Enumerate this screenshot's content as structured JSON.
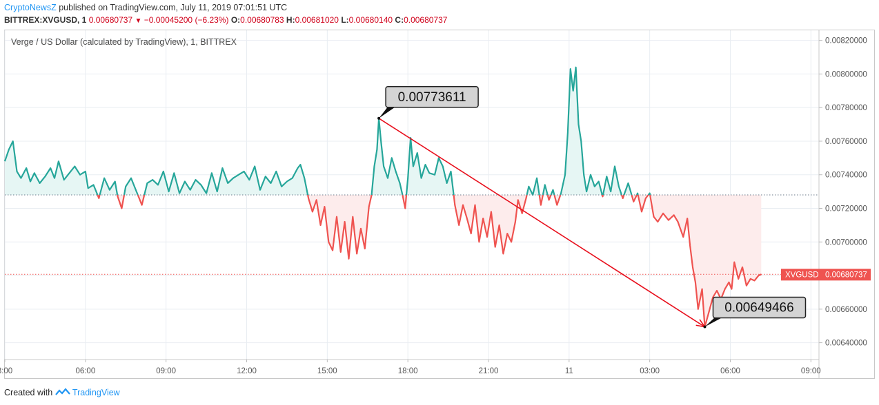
{
  "header": {
    "author": "CryptoNewsZ",
    "published": "published on TradingView.com, July 11, 2019 07:01:51 UTC",
    "symbol": "BITTREX:XVGUSD, 1",
    "last": "0.00680737",
    "change_arrow": "▼",
    "change": "−0.00045200 (−6.23%)",
    "o_label": "O:",
    "o": "0.00680783",
    "h_label": "H:",
    "h": "0.00681020",
    "l_label": "L:",
    "l": "0.00680140",
    "c_label": "C:",
    "c": "0.00680737"
  },
  "footer": {
    "created_with": "Created with",
    "brand": "TradingView"
  },
  "colors": {
    "up": "#26a69a",
    "down": "#ef5350",
    "up_fill": "#e6f6f4",
    "down_fill": "#fdecec",
    "arrow": "#e8101d",
    "grid": "#e9edf2",
    "price_tag": "#ef5350"
  },
  "chart_data": {
    "type": "line",
    "title": "Verge / US Dollar (calculated by TradingView), 1, BITTREX",
    "x_unit": "hours since July 10 03:00 UTC",
    "xlim": [
      0,
      30.3
    ],
    "ylim": [
      0.0063,
      0.00826
    ],
    "baseline": 0.00728,
    "current_price": 0.00680737,
    "current_label": "XVGUSD",
    "current_value_text": "0.00680737",
    "x_ticks": [
      {
        "x": 0,
        "label": "3:00"
      },
      {
        "x": 3,
        "label": "06:00"
      },
      {
        "x": 6,
        "label": "09:00"
      },
      {
        "x": 9,
        "label": "12:00"
      },
      {
        "x": 12,
        "label": "15:00"
      },
      {
        "x": 15,
        "label": "18:00"
      },
      {
        "x": 18,
        "label": "21:00"
      },
      {
        "x": 21,
        "label": "11"
      },
      {
        "x": 24,
        "label": "03:00"
      },
      {
        "x": 27,
        "label": "06:00"
      },
      {
        "x": 30,
        "label": "09:00"
      }
    ],
    "y_ticks": [
      "0.00640000",
      "0.00660000",
      "0.00680000",
      "0.00700000",
      "0.00720000",
      "0.00740000",
      "0.00760000",
      "0.00780000",
      "0.00800000",
      "0.00820000"
    ],
    "series": [
      {
        "name": "XVGUSD",
        "points": [
          [
            0.0,
            0.00748
          ],
          [
            0.15,
            0.00755
          ],
          [
            0.3,
            0.0076
          ],
          [
            0.45,
            0.00742
          ],
          [
            0.6,
            0.00738
          ],
          [
            0.8,
            0.00744
          ],
          [
            0.95,
            0.00736
          ],
          [
            1.1,
            0.00741
          ],
          [
            1.3,
            0.00735
          ],
          [
            1.5,
            0.00739
          ],
          [
            1.7,
            0.00744
          ],
          [
            1.85,
            0.00738
          ],
          [
            2.0,
            0.00748
          ],
          [
            2.2,
            0.00737
          ],
          [
            2.4,
            0.00741
          ],
          [
            2.6,
            0.00745
          ],
          [
            2.8,
            0.0074
          ],
          [
            3.0,
            0.00742
          ],
          [
            3.1,
            0.00732
          ],
          [
            3.3,
            0.00734
          ],
          [
            3.5,
            0.00726
          ],
          [
            3.7,
            0.00738
          ],
          [
            3.9,
            0.00731
          ],
          [
            4.1,
            0.00736
          ],
          [
            4.2,
            0.00727
          ],
          [
            4.35,
            0.0072
          ],
          [
            4.5,
            0.00733
          ],
          [
            4.7,
            0.00738
          ],
          [
            4.9,
            0.0073
          ],
          [
            5.1,
            0.00722
          ],
          [
            5.3,
            0.00735
          ],
          [
            5.5,
            0.00737
          ],
          [
            5.7,
            0.00734
          ],
          [
            5.9,
            0.00742
          ],
          [
            6.1,
            0.0073
          ],
          [
            6.3,
            0.00741
          ],
          [
            6.5,
            0.00729
          ],
          [
            6.7,
            0.00736
          ],
          [
            6.9,
            0.00731
          ],
          [
            7.1,
            0.00737
          ],
          [
            7.3,
            0.00734
          ],
          [
            7.5,
            0.00729
          ],
          [
            7.7,
            0.00741
          ],
          [
            7.9,
            0.0073
          ],
          [
            8.1,
            0.00744
          ],
          [
            8.3,
            0.00735
          ],
          [
            8.5,
            0.00738
          ],
          [
            8.7,
            0.0074
          ],
          [
            8.9,
            0.00742
          ],
          [
            9.1,
            0.00737
          ],
          [
            9.3,
            0.00745
          ],
          [
            9.5,
            0.00731
          ],
          [
            9.7,
            0.00739
          ],
          [
            9.9,
            0.00735
          ],
          [
            10.1,
            0.00742
          ],
          [
            10.3,
            0.00733
          ],
          [
            10.5,
            0.00736
          ],
          [
            10.7,
            0.00738
          ],
          [
            10.9,
            0.00744
          ],
          [
            11.0,
            0.00746
          ],
          [
            11.15,
            0.00738
          ],
          [
            11.3,
            0.00726
          ],
          [
            11.45,
            0.00718
          ],
          [
            11.6,
            0.00725
          ],
          [
            11.75,
            0.0071
          ],
          [
            11.9,
            0.00721
          ],
          [
            12.05,
            0.007
          ],
          [
            12.2,
            0.00695
          ],
          [
            12.35,
            0.00715
          ],
          [
            12.5,
            0.00694
          ],
          [
            12.65,
            0.00712
          ],
          [
            12.8,
            0.0069
          ],
          [
            12.95,
            0.00715
          ],
          [
            13.1,
            0.00693
          ],
          [
            13.25,
            0.00708
          ],
          [
            13.4,
            0.00696
          ],
          [
            13.55,
            0.00721
          ],
          [
            13.65,
            0.00728
          ],
          [
            13.75,
            0.00745
          ],
          [
            13.85,
            0.00755
          ],
          [
            13.92,
            0.00773611
          ],
          [
            14.0,
            0.0076
          ],
          [
            14.1,
            0.00745
          ],
          [
            14.25,
            0.00738
          ],
          [
            14.4,
            0.0075
          ],
          [
            14.55,
            0.00742
          ],
          [
            14.7,
            0.00735
          ],
          [
            14.8,
            0.00728
          ],
          [
            14.9,
            0.0072
          ],
          [
            15.0,
            0.00738
          ],
          [
            15.1,
            0.00762
          ],
          [
            15.2,
            0.00745
          ],
          [
            15.35,
            0.00753
          ],
          [
            15.5,
            0.00738
          ],
          [
            15.65,
            0.00746
          ],
          [
            15.8,
            0.00741
          ],
          [
            16.0,
            0.0074
          ],
          [
            16.15,
            0.0075
          ],
          [
            16.3,
            0.00745
          ],
          [
            16.45,
            0.00735
          ],
          [
            16.6,
            0.00742
          ],
          [
            16.75,
            0.00722
          ],
          [
            16.9,
            0.0071
          ],
          [
            17.05,
            0.00722
          ],
          [
            17.2,
            0.00714
          ],
          [
            17.35,
            0.00705
          ],
          [
            17.5,
            0.00722
          ],
          [
            17.65,
            0.007
          ],
          [
            17.8,
            0.00714
          ],
          [
            17.95,
            0.00703
          ],
          [
            18.1,
            0.00718
          ],
          [
            18.25,
            0.00697
          ],
          [
            18.4,
            0.0071
          ],
          [
            18.55,
            0.00693
          ],
          [
            18.7,
            0.00705
          ],
          [
            18.85,
            0.007
          ],
          [
            19.0,
            0.00712
          ],
          [
            19.1,
            0.00725
          ],
          [
            19.25,
            0.00717
          ],
          [
            19.4,
            0.00726
          ],
          [
            19.5,
            0.00733
          ],
          [
            19.65,
            0.00728
          ],
          [
            19.8,
            0.00738
          ],
          [
            19.95,
            0.00722
          ],
          [
            20.1,
            0.00734
          ],
          [
            20.25,
            0.00725
          ],
          [
            20.4,
            0.00731
          ],
          [
            20.55,
            0.00722
          ],
          [
            20.7,
            0.00729
          ],
          [
            20.85,
            0.0074
          ],
          [
            20.95,
            0.00765
          ],
          [
            21.05,
            0.00803
          ],
          [
            21.15,
            0.0079
          ],
          [
            21.25,
            0.00804
          ],
          [
            21.35,
            0.0077
          ],
          [
            21.45,
            0.0076
          ],
          [
            21.55,
            0.0074
          ],
          [
            21.65,
            0.0073
          ],
          [
            21.8,
            0.0074
          ],
          [
            21.95,
            0.00733
          ],
          [
            22.1,
            0.00736
          ],
          [
            22.25,
            0.00727
          ],
          [
            22.4,
            0.00739
          ],
          [
            22.55,
            0.0073
          ],
          [
            22.7,
            0.00745
          ],
          [
            22.85,
            0.00733
          ],
          [
            23.0,
            0.00726
          ],
          [
            23.2,
            0.00735
          ],
          [
            23.4,
            0.00724
          ],
          [
            23.55,
            0.00729
          ],
          [
            23.7,
            0.00718
          ],
          [
            23.85,
            0.00726
          ],
          [
            24.0,
            0.00729
          ],
          [
            24.15,
            0.00715
          ],
          [
            24.3,
            0.00712
          ],
          [
            24.5,
            0.00717
          ],
          [
            24.7,
            0.00713
          ],
          [
            24.9,
            0.00716
          ],
          [
            25.05,
            0.00712
          ],
          [
            25.25,
            0.00703
          ],
          [
            25.4,
            0.00714
          ],
          [
            25.5,
            0.00698
          ],
          [
            25.6,
            0.00685
          ],
          [
            25.7,
            0.00676
          ],
          [
            25.8,
            0.0066
          ],
          [
            25.95,
            0.00672
          ],
          [
            26.05,
            0.00649466
          ],
          [
            26.2,
            0.00658
          ],
          [
            26.35,
            0.00667
          ],
          [
            26.5,
            0.00671
          ],
          [
            26.65,
            0.00666
          ],
          [
            26.8,
            0.00672
          ],
          [
            26.95,
            0.00676
          ],
          [
            27.05,
            0.00672
          ],
          [
            27.15,
            0.00688
          ],
          [
            27.3,
            0.00678
          ],
          [
            27.45,
            0.00685
          ],
          [
            27.6,
            0.00674
          ],
          [
            27.75,
            0.00678
          ],
          [
            27.9,
            0.00677
          ],
          [
            28.05,
            0.0068
          ],
          [
            28.15,
            0.00680737
          ]
        ]
      }
    ],
    "annotations": [
      {
        "text": "0.00773611",
        "x": 13.92,
        "y": 0.00773611
      },
      {
        "text": "0.00649466",
        "x": 26.05,
        "y": 0.00649466
      }
    ],
    "trend_arrow": {
      "from": [
        13.92,
        0.00773611
      ],
      "to": [
        26.05,
        0.00649466
      ]
    }
  }
}
